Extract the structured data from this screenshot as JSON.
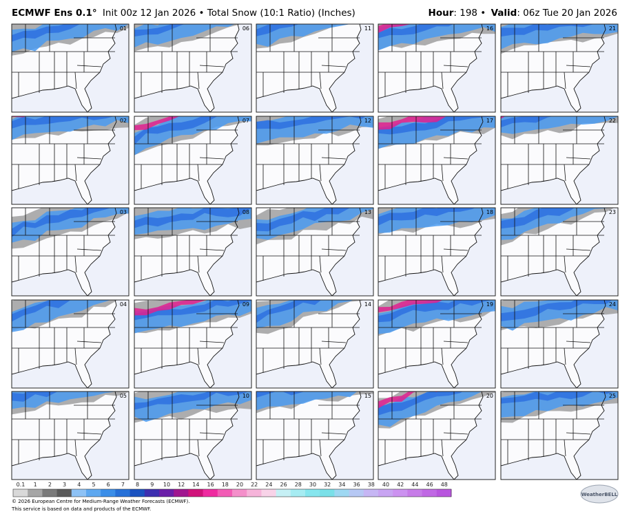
{
  "header": {
    "model": "ECMWF Ens 0.1°",
    "description": "Init 00z 12 Jan 2026 • Total Snow (10:1 Ratio) (Inches)",
    "hour_label": "Hour",
    "hour_value": ": 198 •",
    "valid_label": "Valid",
    "valid_value": ": 06z Tue 20 Jan 2026"
  },
  "panels": [
    "01",
    "06",
    "11",
    "16",
    "21",
    "02",
    "07",
    "12",
    "17",
    "22",
    "03",
    "08",
    "13",
    "18",
    "23",
    "04",
    "09",
    "14",
    "19",
    "24",
    "05",
    "10",
    "15",
    "20",
    "25"
  ],
  "colorbar": {
    "labels": [
      "0.1",
      "1",
      "2",
      "3",
      "4",
      "5",
      "6",
      "7",
      "8",
      "9",
      "10",
      "12",
      "14",
      "16",
      "18",
      "20",
      "22",
      "24",
      "26",
      "28",
      "30",
      "32",
      "34",
      "36",
      "38",
      "40",
      "42",
      "44",
      "46",
      "48"
    ],
    "colors": [
      "#d9d9d9",
      "#a6a6a6",
      "#7a7a7a",
      "#5a5a5a",
      "#8ec2f5",
      "#5ea8f0",
      "#3b8ee8",
      "#2670d8",
      "#1a52c0",
      "#3d2fb0",
      "#6a1fa8",
      "#a0168f",
      "#d0127a",
      "#ef2aa0",
      "#f25cb5",
      "#f48fca",
      "#f6b4da",
      "#f8d3e8",
      "#c6f0f5",
      "#a6ecf2",
      "#86e6ee",
      "#7ae0e8",
      "#9ed8f2",
      "#b6c8f4",
      "#c6b6f4",
      "#c8a4f2",
      "#cc92f0",
      "#c77ce8",
      "#c068e4",
      "#b855de"
    ]
  },
  "footer": {
    "copyright": "© 2026 European Centre for Medium-Range Weather Forecasts (ECMWF).",
    "notice": "This service is based on data and products of the ECMWF."
  },
  "logo": "WeatherBELL"
}
